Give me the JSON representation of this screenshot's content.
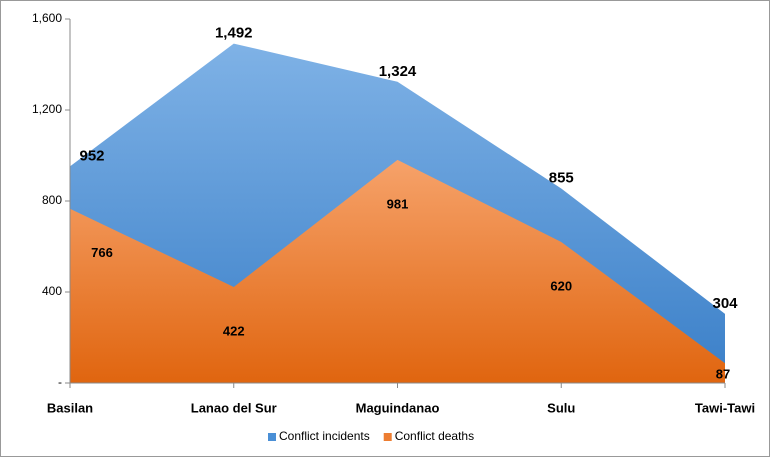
{
  "chart_data": {
    "type": "area",
    "categories": [
      "Basilan",
      "Lanao del Sur",
      "Maguindanao",
      "Sulu",
      "Tawi-Tawi"
    ],
    "series": [
      {
        "name": "Conflict incidents",
        "color": "#4a8fd6",
        "values": [
          952,
          1492,
          1324,
          855,
          304
        ],
        "value_labels": [
          "952",
          "1,492",
          "1,324",
          "855",
          "304"
        ]
      },
      {
        "name": "Conflict deaths",
        "color": "#ed7d31",
        "values": [
          766,
          422,
          981,
          620,
          87
        ]
      }
    ],
    "ylim": [
      0,
      1600
    ],
    "yticks": [
      {
        "value": 0,
        "label": "-"
      },
      400,
      800,
      {
        "value": 1200,
        "label": "1,200"
      },
      {
        "value": 1600,
        "label": "1,600"
      }
    ],
    "legend": "bottom"
  }
}
